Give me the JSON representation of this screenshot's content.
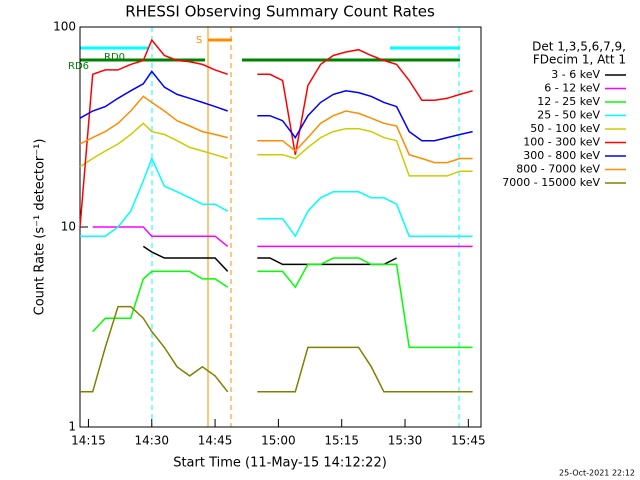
{
  "chart_data": {
    "type": "line",
    "title": "RHESSI Observing Summary Count Rates",
    "xlabel": "Start Time (11-May-15 14:12:22)",
    "ylabel": "Count Rate (s⁻¹ detector⁻¹)",
    "legend_title": [
      "Det 1,3,5,6,7,9,",
      "FDecim 1, Att 1"
    ],
    "flags": [
      "RD0",
      "RD6",
      "S"
    ],
    "timestamp": "25-Oct-2021 22:12",
    "log_y": true,
    "xlim": [
      "14:13",
      "15:48"
    ],
    "xticks": [
      "14:15",
      "14:30",
      "14:45",
      "15:00",
      "15:15",
      "15:30",
      "15:45"
    ],
    "ylim": [
      1,
      100
    ],
    "yticks": [
      1,
      10,
      100
    ],
    "x": [
      "14:13",
      "14:16",
      "14:19",
      "14:22",
      "14:25",
      "14:28",
      "14:30",
      "14:33",
      "14:36",
      "14:39",
      "14:42",
      "14:45",
      "14:48",
      "14:51",
      "14:55",
      "14:58",
      "15:01",
      "15:04",
      "15:07",
      "15:10",
      "15:13",
      "15:16",
      "15:19",
      "15:22",
      "15:25",
      "15:28",
      "15:31",
      "15:34",
      "15:37",
      "15:40",
      "15:43",
      "15:46"
    ],
    "series": [
      {
        "name": "3 - 6 keV",
        "color": "#000000",
        "values": [
          null,
          null,
          null,
          null,
          null,
          8,
          7.5,
          7,
          7,
          7,
          7,
          7,
          6,
          null,
          7,
          7,
          6.5,
          6.5,
          6.5,
          6.5,
          6.5,
          6.5,
          6.5,
          6.5,
          6.5,
          7,
          null,
          null,
          null,
          null,
          null,
          null
        ]
      },
      {
        "name": "6 - 12 keV",
        "color": "#ff00ff",
        "values": [
          null,
          10,
          10,
          10,
          10,
          10,
          9,
          9,
          9,
          9,
          9,
          9,
          8,
          null,
          8,
          8,
          8,
          8,
          8,
          8,
          8,
          8,
          8,
          8,
          8,
          8,
          8,
          8,
          8,
          8,
          8,
          8
        ]
      },
      {
        "name": "12 - 25 keV",
        "color": "#00ff00",
        "values": [
          null,
          3,
          3.5,
          3.5,
          3.5,
          5.5,
          6,
          6,
          6,
          6,
          5.5,
          5.5,
          5,
          null,
          6,
          6,
          6,
          5,
          6.5,
          6.5,
          7,
          7,
          7,
          6.5,
          6.5,
          6.5,
          2.5,
          2.5,
          2.5,
          2.5,
          2.5,
          2.5
        ]
      },
      {
        "name": "25 - 50 keV",
        "color": "#00ffff",
        "values": [
          9,
          9,
          9,
          10,
          12,
          17,
          22,
          16,
          15,
          14,
          13,
          13,
          12,
          null,
          11,
          11,
          11,
          9,
          12,
          14,
          15,
          15,
          15,
          14,
          14,
          13,
          9,
          9,
          9,
          9,
          9,
          9
        ]
      },
      {
        "name": "50 - 100 keV",
        "color": "#cccc00",
        "values": [
          20,
          22,
          24,
          26,
          29,
          33,
          30,
          29,
          27,
          25,
          24,
          23,
          22,
          null,
          23,
          23,
          23,
          22,
          25,
          28,
          30,
          31,
          31,
          30,
          28,
          27,
          18,
          18,
          18,
          18,
          19,
          19
        ]
      },
      {
        "name": "100 - 300 keV",
        "color": "#ff0000",
        "values": [
          10,
          58,
          61,
          61,
          65,
          68,
          86,
          72,
          68,
          67,
          65,
          61,
          58,
          null,
          58,
          58,
          54,
          23,
          51,
          65,
          72,
          75,
          77,
          72,
          68,
          65,
          54,
          43,
          43,
          44,
          46,
          48
        ]
      },
      {
        "name": "300 - 800 keV",
        "color": "#0000ff",
        "values": [
          35,
          38,
          40,
          44,
          48,
          52,
          60,
          50,
          46,
          44,
          42,
          40,
          38,
          null,
          36,
          36,
          34,
          28,
          36,
          42,
          46,
          48,
          47,
          45,
          42,
          40,
          30,
          27,
          27,
          28,
          29,
          30
        ]
      },
      {
        "name": "800 - 7000 keV",
        "color": "#ff8c00",
        "values": [
          26,
          28,
          30,
          33,
          38,
          45,
          42,
          38,
          34,
          32,
          30,
          29,
          28,
          null,
          27,
          27,
          27,
          24,
          28,
          33,
          36,
          38,
          37,
          35,
          33,
          32,
          23,
          22,
          21,
          21,
          22,
          22
        ]
      },
      {
        "name": "7000 - 15000 keV",
        "color": "#808000",
        "values": [
          1.5,
          1.5,
          2.5,
          4,
          4,
          3.5,
          3,
          2.5,
          2,
          1.8,
          2,
          1.8,
          1.5,
          null,
          1.5,
          1.5,
          1.5,
          1.5,
          2.5,
          2.5,
          2.5,
          2.5,
          2.5,
          2,
          1.5,
          1.5,
          1.5,
          1.5,
          1.5,
          1.5,
          1.5,
          1.5
        ]
      }
    ]
  }
}
